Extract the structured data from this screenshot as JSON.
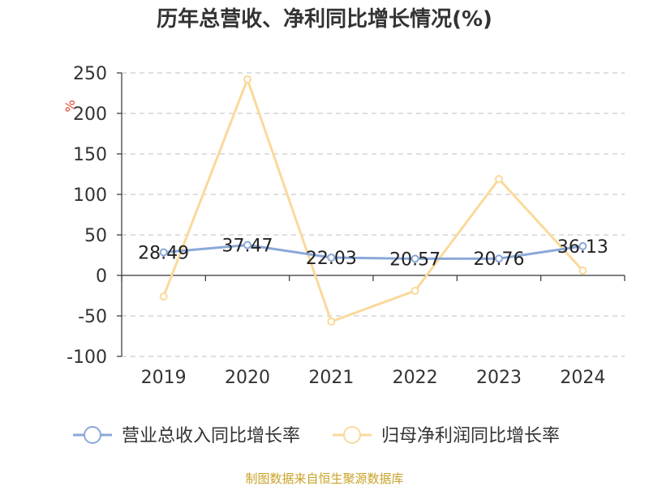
{
  "chart_data": {
    "type": "line",
    "title": "历年总营收、净利同比增长情况(%)",
    "ylabel": "%",
    "categories": [
      "2019",
      "2020",
      "2021",
      "2022",
      "2023",
      "2024"
    ],
    "ylim": [
      -100,
      250
    ],
    "yticks": [
      250,
      200,
      150,
      100,
      50,
      0,
      -50,
      -100
    ],
    "grid": true,
    "legend_position": "bottom",
    "series": [
      {
        "name": "营业总收入同比增长率",
        "values": [
          28.49,
          37.47,
          22.03,
          20.57,
          20.76,
          36.13
        ],
        "labels": [
          "28.49",
          "37.47",
          "22.03",
          "20.57",
          "20.76",
          "36.13"
        ],
        "color": "#8aa8d8"
      },
      {
        "name": "归母净利润同比增长率",
        "values": [
          -26,
          242,
          -57,
          -19,
          119,
          6
        ],
        "color": "#fad99a"
      }
    ],
    "source": "制图数据来自恒生聚源数据库"
  }
}
